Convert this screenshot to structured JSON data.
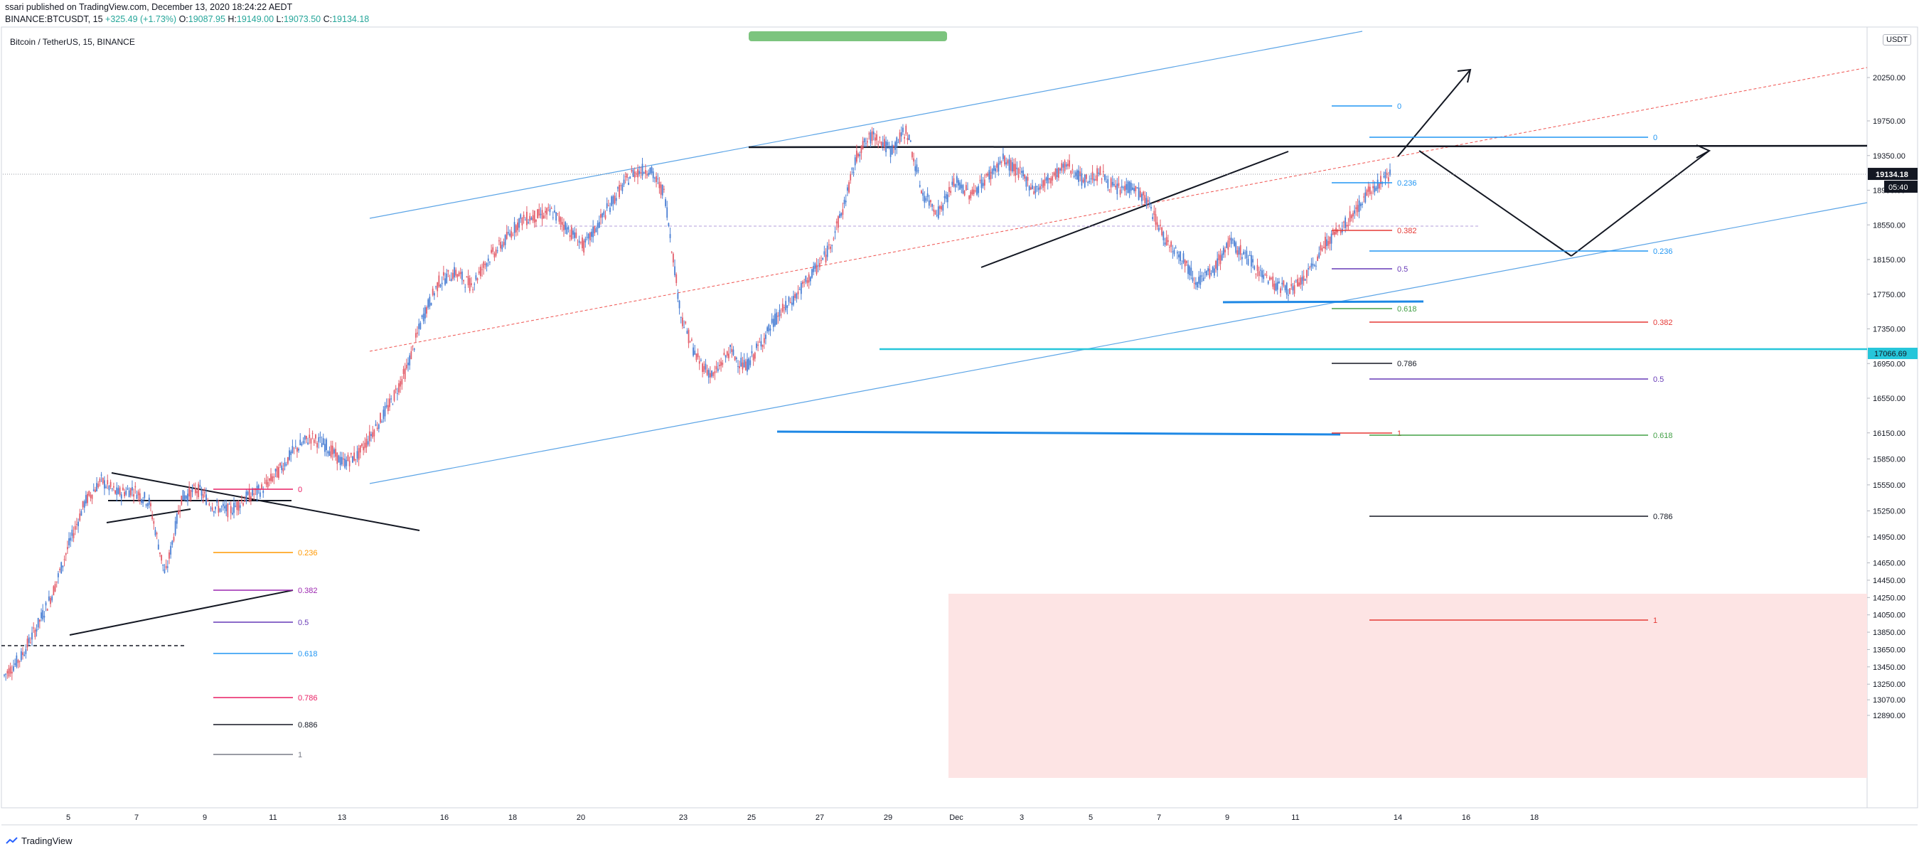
{
  "header": {
    "line1": "ssari published on TradingView.com, December 13, 2020 18:24:22 AEDT",
    "symbol": "BINANCE:BTCUSDT, 15",
    "change": "+325.49 (+1.73%)",
    "o_label": "O:",
    "o_value": "19087.95",
    "h_label": "H:",
    "h_value": "19149.00",
    "l_label": "L:",
    "l_value": "19073.50",
    "c_label": "C:",
    "c_value": "19134.18"
  },
  "pane_title": "Bitcoin / TetherUS, 15, BINANCE",
  "currency_badge": "USDT",
  "footer_brand": "TradingView",
  "colors": {
    "up": "#4a7fd4",
    "down": "#e35d6a",
    "channel": "#5ba4e6",
    "support": "#1e88e5",
    "cyan_level": "#26c6da",
    "zone": "#fde4e4",
    "green_bar": "#7cc47e",
    "price_badge": "#131722"
  },
  "chart_data": {
    "type": "line",
    "title": "Bitcoin / TetherUS, 15, BINANCE",
    "xlabel": "",
    "ylabel": "",
    "x_tick_labels": [
      "5",
      "7",
      "9",
      "11",
      "13",
      "16",
      "18",
      "20",
      "23",
      "25",
      "27",
      "29",
      "Dec",
      "3",
      "5",
      "7",
      "9",
      "11",
      "14",
      "16",
      "18"
    ],
    "y_tick_labels": [
      "20250.00",
      "19750.00",
      "19350.00",
      "18950.00",
      "18550.00",
      "18150.00",
      "17750.00",
      "17350.00",
      "16950.00",
      "16550.00",
      "16150.00",
      "15850.00",
      "15550.00",
      "15250.00",
      "14950.00",
      "14650.00",
      "14450.00",
      "14250.00",
      "14050.00",
      "13850.00",
      "13650.00",
      "13450.00",
      "13250.00",
      "13070.00",
      "12890.00"
    ],
    "ylim": [
      12800,
      20600
    ],
    "grid": false,
    "current_price_label": "19134.18",
    "countdown_label": "05:40",
    "level_label": "17066.69",
    "series": [
      {
        "values": [
          13350,
          13550,
          13900,
          14300,
          14850,
          15350,
          15600,
          15450,
          15500,
          15350,
          14500,
          15400,
          15500,
          15300,
          15250,
          15400,
          15500,
          15700,
          15950,
          16100,
          16000,
          15800,
          15900,
          16200,
          16500,
          16900,
          17500,
          17900,
          18000,
          17850,
          18150,
          18350,
          18600,
          18650,
          18700,
          18500,
          18300,
          18600,
          18900,
          19150,
          19200,
          18900,
          17500,
          17000,
          16800,
          17100,
          16900,
          17200,
          17500,
          17700,
          17950,
          18200,
          18700,
          19400,
          19600,
          19400,
          19650,
          18900,
          18700,
          19050,
          18900,
          19100,
          19300,
          19150,
          18950,
          19100,
          19250,
          19050,
          19150,
          18950,
          19000,
          18800,
          18400,
          18200,
          17900,
          18000,
          18350,
          18200,
          18000,
          17850,
          17800,
          18000,
          18350,
          18500,
          18750,
          19000,
          19134
        ]
      }
    ],
    "fib_set_left": {
      "levels": [
        "0",
        "0.236",
        "0.382",
        "0.5",
        "0.618",
        "0.786",
        "0.886",
        "1"
      ],
      "colors": [
        "#e91e63",
        "#ff9800",
        "#9c27b0",
        "#673ab7",
        "#2196f3",
        "#e91e63",
        "#131722",
        "#787b86"
      ]
    },
    "fib_set_mid": {
      "levels": [
        "0",
        "0.236",
        "0.382",
        "0.5",
        "0.618",
        "0.786",
        "1"
      ],
      "colors": [
        "#2196f3",
        "#2196f3",
        "#e53935",
        "#673ab7",
        "#43a047",
        "#131722",
        "#e53935"
      ]
    },
    "fib_set_right": {
      "levels": [
        "0",
        "0.236",
        "0.382",
        "0.5",
        "0.618",
        "0.786",
        "1"
      ],
      "colors": [
        "#2196f3",
        "#2196f3",
        "#e53935",
        "#673ab7",
        "#43a047",
        "#131722",
        "#e53935"
      ]
    }
  }
}
